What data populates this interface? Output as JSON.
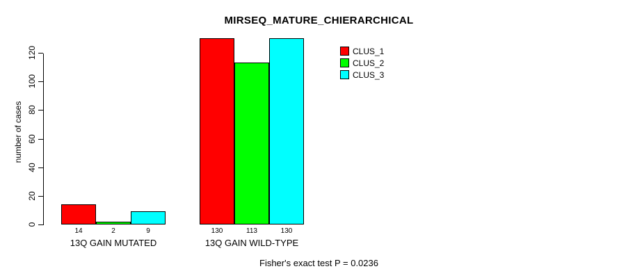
{
  "chart_data": {
    "type": "bar",
    "title": "MIRSEQ_MATURE_CHIERARCHICAL",
    "xlabel": "",
    "ylabel": "number of cases",
    "categories": [
      "13Q GAIN MUTATED",
      "13Q GAIN WILD-TYPE"
    ],
    "series": [
      {
        "name": "CLUS_1",
        "color": "#ff0000",
        "values": [
          14,
          130
        ]
      },
      {
        "name": "CLUS_2",
        "color": "#00ff00",
        "values": [
          2,
          113
        ]
      },
      {
        "name": "CLUS_3",
        "color": "#00ffff",
        "values": [
          9,
          130
        ]
      }
    ],
    "bar_labels": [
      [
        14,
        2,
        9
      ],
      [
        130,
        113,
        130
      ]
    ],
    "yticks": [
      0,
      20,
      40,
      60,
      80,
      100,
      120
    ],
    "ylim": [
      0,
      130
    ],
    "grid": false,
    "legend_position": "top-right",
    "annotation": "Fisher's exact test P = 0.0236"
  }
}
